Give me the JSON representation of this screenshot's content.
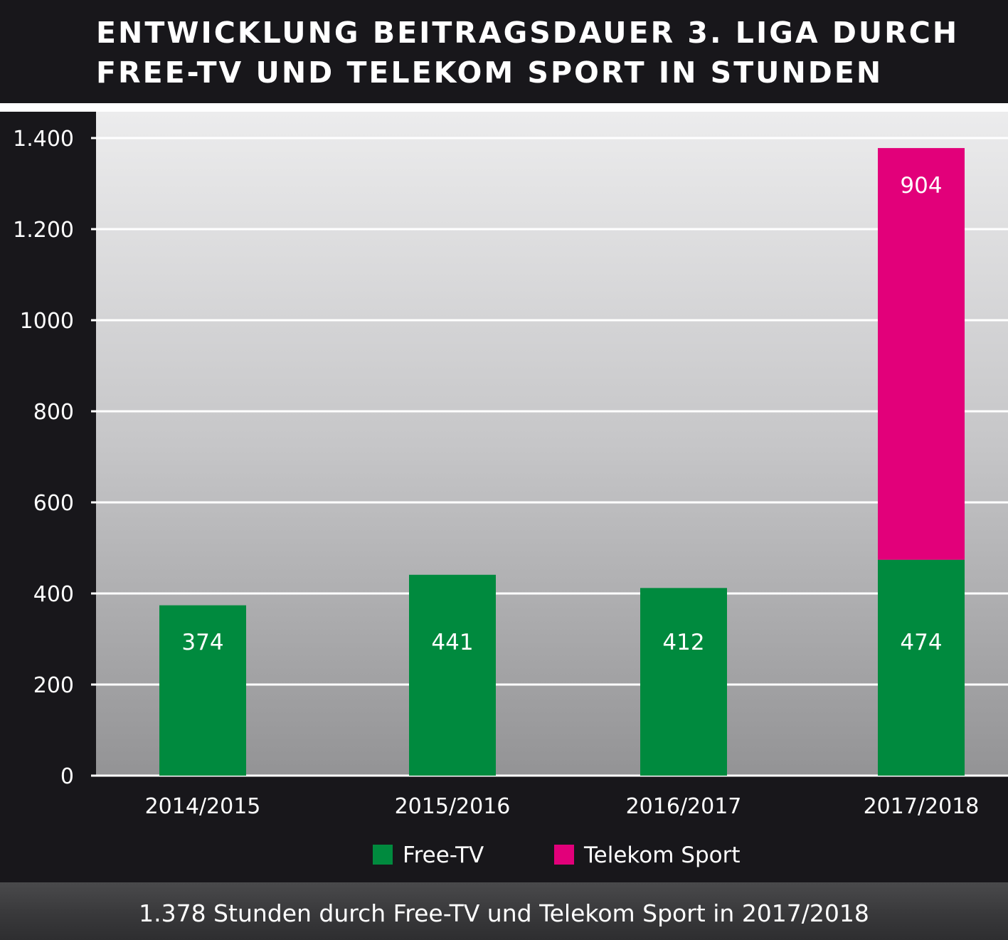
{
  "title": {
    "line1": "ENTWICKLUNG BEITRAGSDAUER 3. LIGA DURCH",
    "line2": "FREE-TV UND TELEKOM SPORT IN STUNDEN"
  },
  "footer": {
    "text": "1.378 Stunden durch Free-TV und Telekom Sport in 2017/2018"
  },
  "colors": {
    "free_tv": "#008a3e",
    "telekom_sport": "#e2007a",
    "background": "#18171b"
  },
  "chart_data": {
    "type": "bar",
    "stacked": true,
    "categories": [
      "2014/2015",
      "2015/2016",
      "2016/2017",
      "2017/2018"
    ],
    "series": [
      {
        "name": "Free-TV",
        "values": [
          374,
          441,
          412,
          474
        ],
        "labels": [
          "374",
          "441",
          "412",
          "474"
        ]
      },
      {
        "name": "Telekom Sport",
        "values": [
          null,
          null,
          null,
          904
        ],
        "labels": [
          "",
          "",
          "",
          "904"
        ]
      }
    ],
    "yticks": [
      {
        "value": 0,
        "label": "0"
      },
      {
        "value": 200,
        "label": "200"
      },
      {
        "value": 400,
        "label": "400"
      },
      {
        "value": 600,
        "label": "600"
      },
      {
        "value": 800,
        "label": "800"
      },
      {
        "value": 1000,
        "label": "1000"
      },
      {
        "value": 1200,
        "label": "1.200"
      },
      {
        "value": 1400,
        "label": "1.400"
      }
    ],
    "ylim": [
      0,
      1400
    ],
    "grid": true,
    "legend_position": "bottom-center",
    "xlabel": "",
    "ylabel": ""
  }
}
